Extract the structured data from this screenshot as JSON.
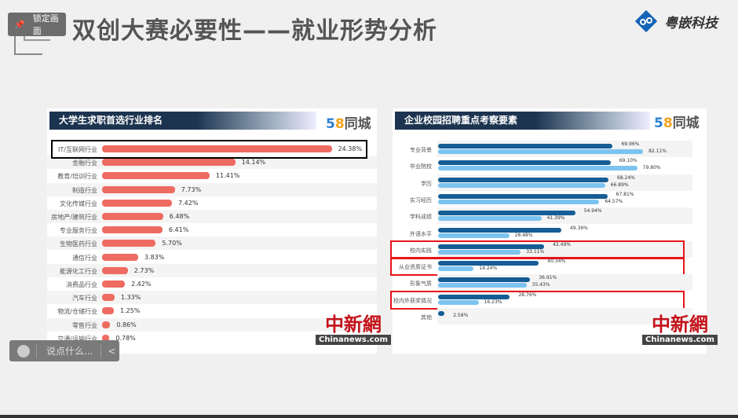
{
  "slide": {
    "title": "双创大赛必要性——就业形势分析",
    "lock_label": "锁定画面",
    "brand": "粤嵌科技",
    "brand_color": "#1565b8"
  },
  "chat": {
    "placeholder": "说点什么...",
    "collapse": "<"
  },
  "watermark": {
    "cn": "中新網",
    "en": "Chinanews.com"
  },
  "chart_data": [
    {
      "type": "bar",
      "title": "大学生求职首选行业排名",
      "source_logo": "58同城",
      "unit": "%",
      "categories": [
        "IT/互联网行业",
        "金融行业",
        "教育/培训行业",
        "制造行业",
        "文化传媒行业",
        "房地产/建筑行业",
        "专业服务行业",
        "生物医药行业",
        "通信行业",
        "能源化工行业",
        "消费品行业",
        "汽车行业",
        "物流/仓储行业",
        "零售行业",
        "交通/运输行业"
      ],
      "values": [
        24.38,
        14.14,
        11.41,
        7.73,
        7.42,
        6.48,
        6.41,
        5.7,
        3.83,
        2.73,
        2.42,
        1.33,
        1.25,
        0.86,
        0.78
      ],
      "labels": [
        "24.38%",
        "14.14%",
        "11.41%",
        "7.73%",
        "7.42%",
        "6.48%",
        "6.41%",
        "5.70%",
        "3.83%",
        "2.73%",
        "2.42%",
        "1.33%",
        "1.25%",
        "0.86%",
        "0.78%"
      ],
      "color": "#ee6b61",
      "highlighted": [
        "IT/互联网行业"
      ]
    },
    {
      "type": "bar",
      "title": "企业校园招聘重点考察要素",
      "source_logo": "58同城",
      "unit": "%",
      "categories": [
        "专业背景",
        "毕业院校",
        "学历",
        "实习经历",
        "学科成绩",
        "外语水平",
        "校内实践",
        "从业资质证书",
        "形象气质",
        "校内外获奖情况",
        "其他"
      ],
      "series": [
        {
          "color": "#155d94",
          "values": [
            69.96,
            69.1,
            68.24,
            67.81,
            54.94,
            49.36,
            42.49,
            40.34,
            36.91,
            28.76,
            2.58
          ],
          "labels": [
            "69.96%",
            "69.10%",
            "68.24%",
            "67.81%",
            "54.94%",
            "49.36%",
            "42.49%",
            "40.34%",
            "36.91%",
            "28.76%",
            "2.58%"
          ]
        },
        {
          "color": "#7cc3f0",
          "values": [
            82.11,
            79.8,
            66.89,
            64.57,
            41.39,
            28.48,
            33.11,
            14.24,
            35.43,
            16.23,
            null
          ],
          "labels": [
            "82.11%",
            "79.80%",
            "66.89%",
            "64.57%",
            "41.39%",
            "28.48%",
            "33.11%",
            "14.24%",
            "35.43%",
            "16.23%",
            null
          ]
        }
      ],
      "highlighted": [
        "校内实践",
        "从业资质证书",
        "校内外获奖情况"
      ]
    }
  ]
}
